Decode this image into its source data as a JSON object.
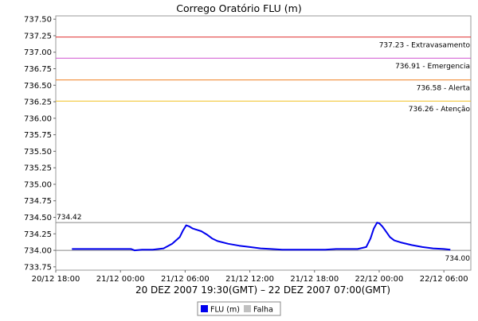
{
  "chart_data": {
    "type": "line",
    "title": "Corrego Oratório FLU (m)",
    "xlabel": "20 DEZ 2007 19:30(GMT) – 22 DEZ 2007 07:00(GMT)",
    "ylabel": "",
    "x_unit": "hours",
    "x_start_label": "20/12 18:00",
    "xlim": [
      0,
      38.5
    ],
    "ylim": [
      733.7,
      737.55
    ],
    "grid": false,
    "legend_position": "bottom",
    "x_ticks": [
      {
        "x": 0,
        "label": "20/12 18:00"
      },
      {
        "x": 6,
        "label": "21/12 00:00"
      },
      {
        "x": 12,
        "label": "21/12 06:00"
      },
      {
        "x": 18,
        "label": "21/12 12:00"
      },
      {
        "x": 24,
        "label": "21/12 18:00"
      },
      {
        "x": 30,
        "label": "22/12 00:00"
      },
      {
        "x": 36,
        "label": "22/12 06:00"
      }
    ],
    "y_ticks": [
      "733.75",
      "734.00",
      "734.25",
      "734.50",
      "734.75",
      "735.00",
      "735.25",
      "735.50",
      "735.75",
      "736.00",
      "736.25",
      "736.50",
      "736.75",
      "737.00",
      "737.25",
      "737.50"
    ],
    "thresholds": [
      {
        "value": 737.23,
        "label": "737.23 - Extravasamento",
        "color": "#e03030"
      },
      {
        "value": 736.91,
        "label": "736.91 - Emergencia",
        "color": "#d050d0"
      },
      {
        "value": 736.58,
        "label": "736.58 - Alerta",
        "color": "#f08020"
      },
      {
        "value": 736.26,
        "label": "736.26 - Atenção",
        "color": "#f0c020"
      }
    ],
    "reference_lines": [
      {
        "value": 734.42,
        "label": "734.42",
        "label_side": "left"
      },
      {
        "value": 734.0,
        "label": "734.00",
        "label_side": "right"
      }
    ],
    "series": [
      {
        "name": "FLU (m)",
        "color": "#0000ee",
        "x": [
          1.5,
          4,
          6,
          7,
          7.3,
          8,
          9,
          10,
          10.8,
          11.5,
          11.8,
          12.1,
          12.4,
          12.7,
          13.1,
          13.5,
          14,
          14.5,
          15,
          16,
          17,
          18,
          19,
          20,
          21,
          22,
          23,
          24,
          25,
          26,
          27,
          28,
          28.8,
          29.2,
          29.5,
          29.8,
          30.0,
          30.3,
          30.7,
          31,
          31.4,
          32,
          33,
          34,
          35,
          36,
          36.6
        ],
        "y": [
          734.02,
          734.02,
          734.02,
          734.02,
          734.0,
          734.01,
          734.01,
          734.03,
          734.1,
          734.2,
          734.3,
          734.38,
          734.36,
          734.33,
          734.31,
          734.29,
          734.24,
          734.18,
          734.14,
          734.1,
          734.07,
          734.05,
          734.03,
          734.02,
          734.01,
          734.01,
          734.01,
          734.01,
          734.01,
          734.02,
          734.02,
          734.02,
          734.05,
          734.18,
          734.33,
          734.42,
          734.41,
          734.36,
          734.27,
          734.2,
          734.15,
          734.12,
          734.08,
          734.05,
          734.03,
          734.02,
          734.01
        ]
      },
      {
        "name": "Falha",
        "color": "#c0c0c0",
        "x": [],
        "y": []
      }
    ]
  }
}
